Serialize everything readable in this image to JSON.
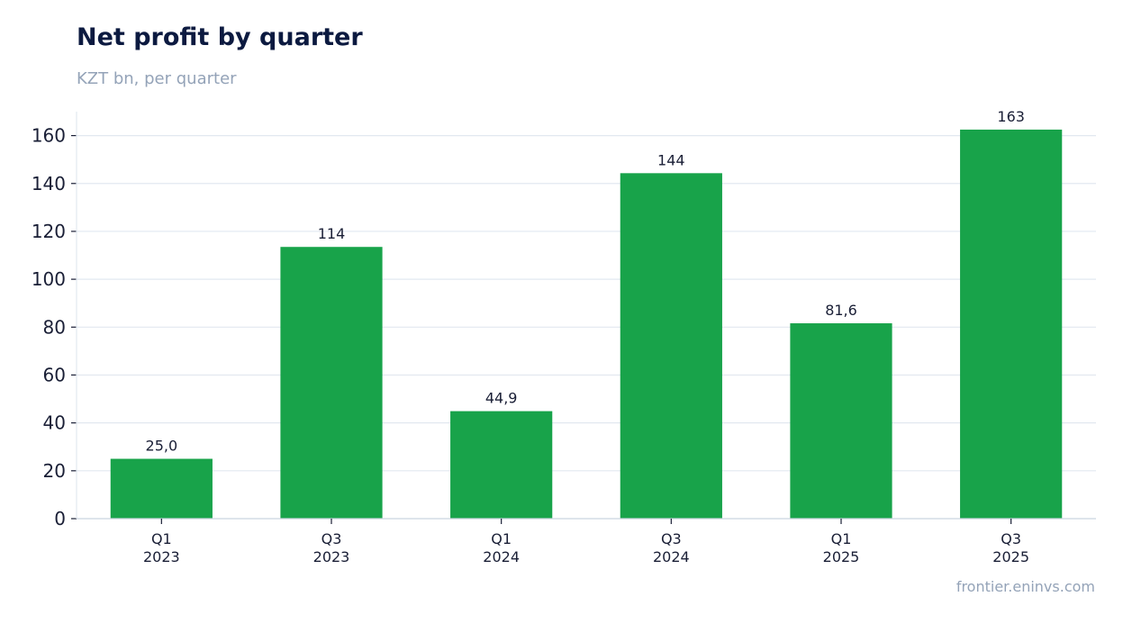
{
  "chart_data": {
    "type": "bar",
    "title": "Net profit by quarter",
    "subtitle": "KZT bn, per quarter",
    "categories": [
      [
        "Q1",
        "2023"
      ],
      [
        "Q3",
        "2023"
      ],
      [
        "Q1",
        "2024"
      ],
      [
        "Q3",
        "2024"
      ],
      [
        "Q1",
        "2025"
      ],
      [
        "Q3",
        "2025"
      ]
    ],
    "values": [
      25.0,
      113.5,
      44.9,
      144.3,
      81.6,
      162.5
    ],
    "data_labels": [
      "25,0",
      "114",
      "44,9",
      "144",
      "81,6",
      "163"
    ],
    "yticks": [
      0,
      20,
      40,
      60,
      80,
      100,
      120,
      140,
      160
    ],
    "ylim": [
      0,
      170
    ],
    "xlabel": "",
    "ylabel": "",
    "grid": true,
    "bar_color": "#18a34a",
    "source": "frontier.eninvs.com"
  }
}
